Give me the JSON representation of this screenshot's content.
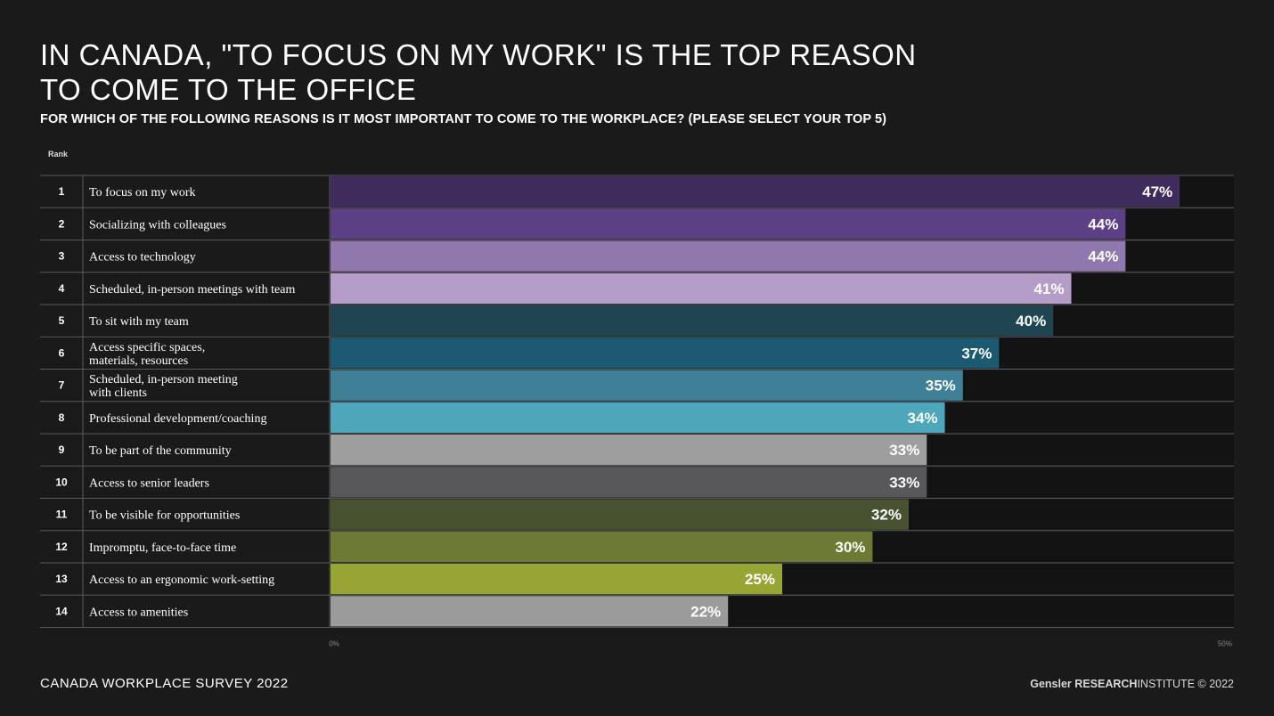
{
  "header": {
    "title_line1": "IN CANADA, \"TO FOCUS ON MY WORK\" IS THE TOP REASON",
    "title_line2": "TO COME TO THE OFFICE",
    "subtitle": "FOR WHICH OF THE FOLLOWING REASONS IS IT MOST IMPORTANT TO COME TO THE WORKPLACE? (PLEASE SELECT YOUR TOP 5)",
    "rank_label": "Rank"
  },
  "chart_data": {
    "type": "bar",
    "orientation": "horizontal",
    "xlim": [
      0,
      50
    ],
    "x_tick_labels": [
      "0%",
      "50%"
    ],
    "grid": false,
    "legend": "none",
    "rows": [
      {
        "rank": "1",
        "label": [
          "To focus on my work"
        ],
        "value": 47,
        "value_label": "47%",
        "color": "#3f2b5c"
      },
      {
        "rank": "2",
        "label": [
          "Socializing with colleagues"
        ],
        "value": 44,
        "value_label": "44%",
        "color": "#5c4085"
      },
      {
        "rank": "3",
        "label": [
          "Access to technology"
        ],
        "value": 44,
        "value_label": "44%",
        "color": "#8f78ad"
      },
      {
        "rank": "4",
        "label": [
          "Scheduled, in-person meetings with team"
        ],
        "value": 41,
        "value_label": "41%",
        "color": "#b49dc9"
      },
      {
        "rank": "5",
        "label": [
          "To sit with my team"
        ],
        "value": 40,
        "value_label": "40%",
        "color": "#1f4551"
      },
      {
        "rank": "6",
        "label": [
          "Access specific spaces,",
          "materials, resources"
        ],
        "value": 37,
        "value_label": "37%",
        "color": "#1c5a71"
      },
      {
        "rank": "7",
        "label": [
          "Scheduled, in-person meeting",
          "with clients"
        ],
        "value": 35,
        "value_label": "35%",
        "color": "#3f8096"
      },
      {
        "rank": "8",
        "label": [
          "Professional development/coaching"
        ],
        "value": 34,
        "value_label": "34%",
        "color": "#4ea6bb"
      },
      {
        "rank": "9",
        "label": [
          "To be part of the community"
        ],
        "value": 33,
        "value_label": "33%",
        "color": "#9e9e9e"
      },
      {
        "rank": "10",
        "label": [
          "Access to senior leaders"
        ],
        "value": 33,
        "value_label": "33%",
        "color": "#58585a"
      },
      {
        "rank": "11",
        "label": [
          "To be visible for opportunities"
        ],
        "value": 32,
        "value_label": "32%",
        "color": "#495230"
      },
      {
        "rank": "12",
        "label": [
          "Impromptu, face-to-face time"
        ],
        "value": 30,
        "value_label": "30%",
        "color": "#6d7a33"
      },
      {
        "rank": "13",
        "label": [
          "Access to an ergonomic work-setting"
        ],
        "value": 25,
        "value_label": "25%",
        "color": "#97a534"
      },
      {
        "rank": "14",
        "label": [
          "Access to amenities"
        ],
        "value": 22,
        "value_label": "22%",
        "color": "#9b9b9b"
      }
    ]
  },
  "footer": {
    "survey": "CANADA WORKPLACE SURVEY 2022",
    "brand": "Gensler",
    "research": "RESEARCH",
    "institute": "INSTITUTE © 2022"
  },
  "colors": {
    "background": "#1b1a1b",
    "row_divider": "#5a5a5a",
    "track": "#141314"
  }
}
